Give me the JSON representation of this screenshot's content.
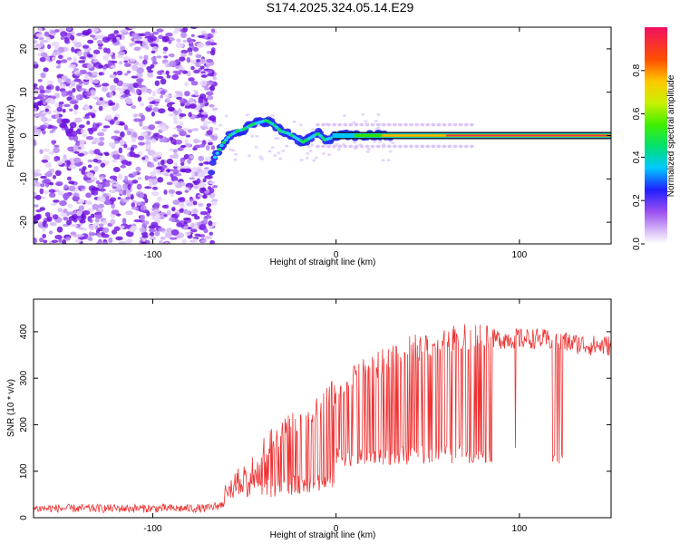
{
  "title": "S174.2025.324.05.14.E29",
  "chart_data": [
    {
      "type": "heatmap",
      "name": "spectrogram",
      "xlabel": "Height of straight line (km)",
      "ylabel": "Frequency (Hz)",
      "xlim": [
        -165,
        150
      ],
      "ylim": [
        -25,
        25
      ],
      "xticks": [
        -100,
        0,
        100
      ],
      "yticks": [
        -20,
        -10,
        0,
        10,
        20
      ],
      "colorbar": {
        "label": "Normalized spectral amplitude",
        "ticks": [
          0.0,
          0.2,
          0.4,
          0.6,
          0.8
        ],
        "range": [
          0,
          1
        ]
      },
      "ridge": {
        "x": [
          -68,
          -66,
          -62,
          -58,
          -54,
          -50,
          -46,
          -42,
          -38,
          -34,
          -30,
          -26,
          -22,
          -18,
          -14,
          -10,
          -6,
          -2,
          2,
          6,
          12,
          20,
          40,
          80,
          150
        ],
        "y": [
          -8,
          -5,
          -2,
          0,
          1,
          1.5,
          2.5,
          3,
          3.5,
          2.5,
          1,
          0.5,
          -0.5,
          -1.5,
          -0.5,
          0.5,
          -1,
          -0.5,
          0,
          0,
          0,
          0,
          0,
          0,
          0
        ]
      },
      "noise_region_x": [
        -165,
        -68
      ]
    },
    {
      "type": "line",
      "name": "snr",
      "xlabel": "Height of straight line (km)",
      "ylabel": "SNR (10 * v/v)",
      "xlim": [
        -165,
        150
      ],
      "ylim": [
        0,
        470
      ],
      "xticks": [
        -100,
        0,
        100
      ],
      "yticks": [
        0,
        100,
        200,
        300,
        400
      ],
      "series": [
        {
          "name": "SNR",
          "color": "#ee3333",
          "envelope": {
            "x": [
              -165,
              -70,
              -60,
              -55,
              -45,
              -40,
              -30,
              -20,
              -10,
              0,
              10,
              20,
              30,
              40,
              50,
              60,
              70,
              80,
              90,
              100,
              110,
              120,
              130,
              140,
              150
            ],
            "y": [
              20,
              20,
              30,
              60,
              90,
              130,
              170,
              200,
              230,
              260,
              290,
              310,
              330,
              350,
              360,
              370,
              375,
              380,
              385,
              385,
              385,
              380,
              375,
              370,
              370
            ]
          }
        }
      ]
    }
  ]
}
